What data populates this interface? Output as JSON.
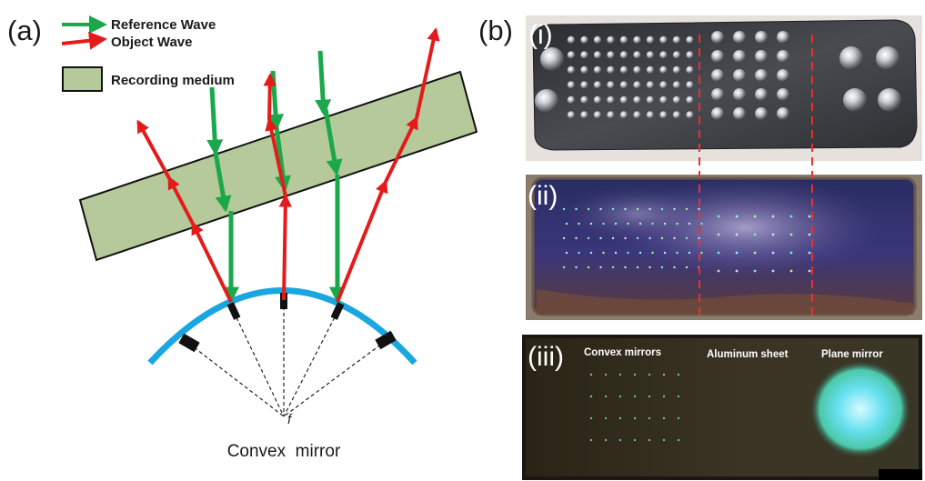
{
  "figure": {
    "panel_a": {
      "label": "(a)",
      "legend": {
        "reference_wave": "Reference Wave",
        "object_wave": "Object Wave",
        "recording_medium": "Recording medium"
      },
      "focal_label": "f",
      "mirror_label": "Convex  mirror"
    },
    "panel_b": {
      "label": "(b)",
      "sub_i": "(i)",
      "sub_ii": "(ii)",
      "sub_iii": "(iii)",
      "region_labels": {
        "convex": "Convex mirrors",
        "aluminum": "Aluminum sheet",
        "plane": "Plane mirror"
      }
    },
    "colors": {
      "reference_wave": "#1aa84a",
      "object_wave": "#e41b1b",
      "recording_medium": "#b5c99a",
      "mirror": "#1aa7e0",
      "divider": "#e23434"
    }
  }
}
